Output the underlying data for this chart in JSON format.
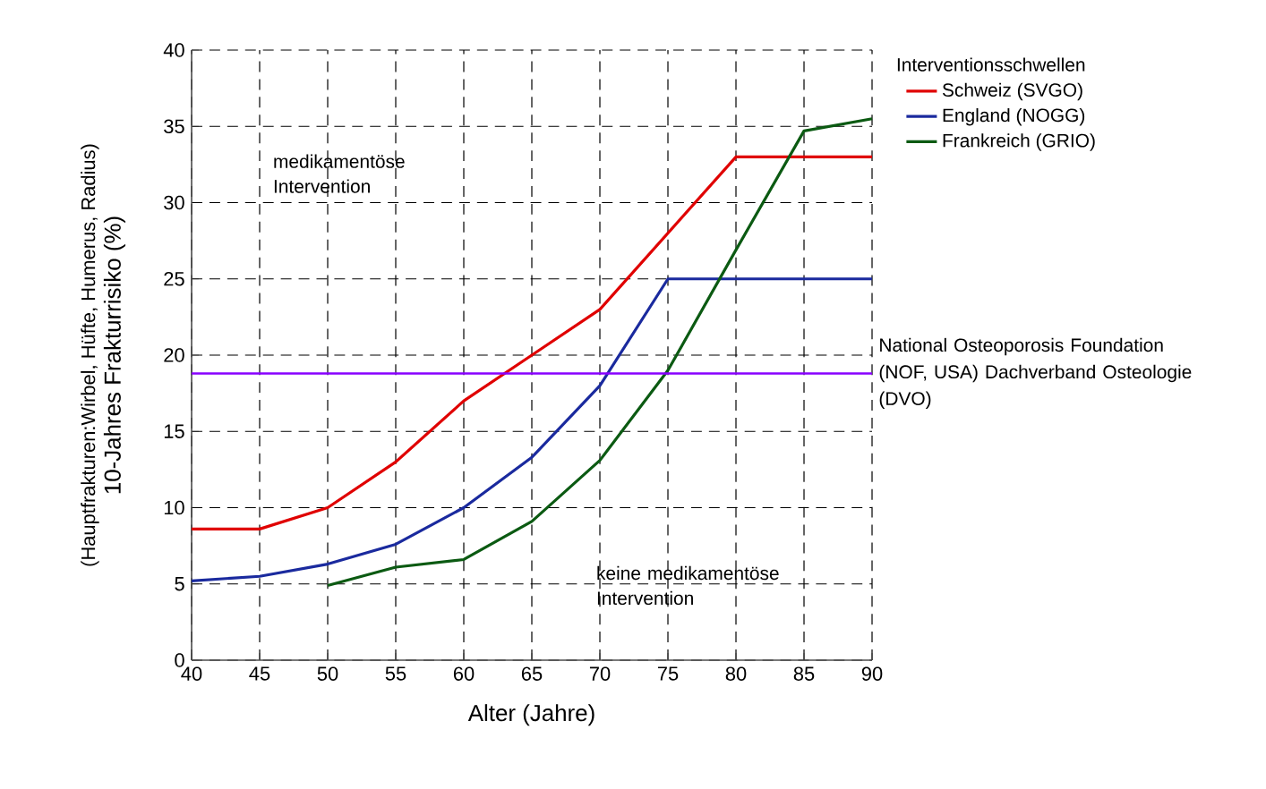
{
  "chart_data": {
    "type": "line",
    "xlabel": "Alter (Jahre)",
    "ylabel": "10-Jahres Frakturrisiko (%)",
    "legend_title": "Interventionsschwellen",
    "x": [
      40,
      45,
      50,
      55,
      60,
      65,
      70,
      75,
      80,
      85,
      90
    ],
    "series": [
      {
        "name": "Schweiz (SVGO)",
        "color": "#e00000",
        "values": [
          8.6,
          8.6,
          10,
          13,
          17,
          20,
          23,
          28,
          33,
          33,
          33
        ]
      },
      {
        "name": "England (NOGG)",
        "color": "#1a2a9e",
        "values": [
          5.2,
          5.5,
          6.3,
          7.6,
          10,
          13.3,
          18,
          25,
          25,
          25,
          25
        ]
      },
      {
        "name": "Frankreich (GRIO)",
        "color": "#0b5a12",
        "values": [
          null,
          null,
          4.9,
          6.1,
          6.6,
          9.1,
          13.1,
          19,
          26.9,
          34.7,
          35.5
        ]
      }
    ],
    "ref_lines": [
      {
        "axis": "y",
        "value": 18.8,
        "label": "National Osteoporosis Foundation (NOF, USA) Dachverband Osteologie (DVO)",
        "color": "#8800ff"
      }
    ],
    "annotations": [
      "(Hauptfrakturen:Wirbel, Hüfte, Humerus, Radius)",
      "medikamentöse Intervention",
      "keine medikamentöse Intervention"
    ],
    "xlim": [
      40,
      90
    ],
    "ylim": [
      0,
      40
    ],
    "xticks": [
      40,
      45,
      50,
      55,
      60,
      65,
      70,
      75,
      80,
      85,
      90
    ],
    "yticks": [
      0,
      5,
      10,
      15,
      20,
      25,
      30,
      35,
      40
    ],
    "grid": true,
    "legend": "top right",
    "marker": "none",
    "line_style": "solid"
  }
}
